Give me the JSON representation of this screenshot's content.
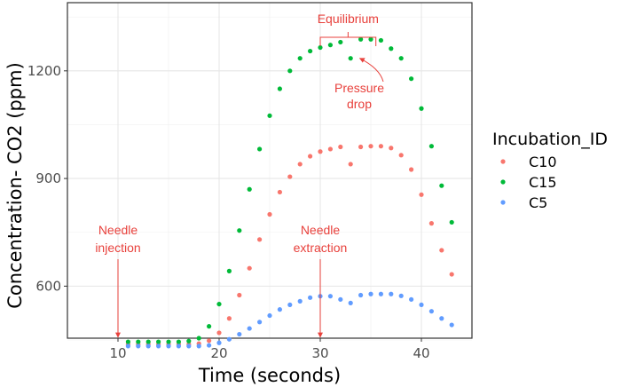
{
  "chart_data": {
    "type": "scatter",
    "title": "",
    "xlabel": "Time (seconds)",
    "ylabel": "Concentration- CO2 (ppm)",
    "xlim": [
      5,
      45
    ],
    "ylim": [
      455,
      1390
    ],
    "xticks": [
      10,
      20,
      30,
      40
    ],
    "yticks": [
      600,
      900,
      1200
    ],
    "xtick_labels": [
      "10",
      "20",
      "30",
      "40"
    ],
    "ytick_labels": [
      "600",
      "900",
      "1200"
    ],
    "grid": true,
    "legend": {
      "title": "Incubation_ID",
      "position": "right"
    },
    "series": [
      {
        "name": "C10",
        "color": "#F8766D",
        "points": [
          [
            11,
            438
          ],
          [
            12,
            438
          ],
          [
            13,
            438
          ],
          [
            14,
            438
          ],
          [
            15,
            438
          ],
          [
            16,
            438
          ],
          [
            17,
            438
          ],
          [
            18,
            440
          ],
          [
            19,
            448
          ],
          [
            20,
            470
          ],
          [
            21,
            510
          ],
          [
            22,
            575
          ],
          [
            23,
            650
          ],
          [
            24,
            730
          ],
          [
            25,
            800
          ],
          [
            26,
            862
          ],
          [
            27,
            905
          ],
          [
            28,
            940
          ],
          [
            29,
            962
          ],
          [
            30,
            975
          ],
          [
            31,
            982
          ],
          [
            32,
            988
          ],
          [
            33,
            940
          ],
          [
            34,
            988
          ],
          [
            35,
            990
          ],
          [
            36,
            990
          ],
          [
            37,
            985
          ],
          [
            38,
            965
          ],
          [
            39,
            925
          ],
          [
            40,
            855
          ],
          [
            41,
            775
          ],
          [
            42,
            700
          ],
          [
            43,
            633
          ]
        ]
      },
      {
        "name": "C15",
        "color": "#00BA38",
        "points": [
          [
            11,
            445
          ],
          [
            12,
            445
          ],
          [
            13,
            445
          ],
          [
            14,
            445
          ],
          [
            15,
            445
          ],
          [
            16,
            445
          ],
          [
            17,
            447
          ],
          [
            18,
            455
          ],
          [
            19,
            488
          ],
          [
            20,
            550
          ],
          [
            21,
            642
          ],
          [
            22,
            755
          ],
          [
            23,
            870
          ],
          [
            24,
            982
          ],
          [
            25,
            1075
          ],
          [
            26,
            1150
          ],
          [
            27,
            1200
          ],
          [
            28,
            1235
          ],
          [
            29,
            1255
          ],
          [
            30,
            1265
          ],
          [
            31,
            1272
          ],
          [
            32,
            1280
          ],
          [
            33,
            1235
          ],
          [
            34,
            1288
          ],
          [
            35,
            1288
          ],
          [
            36,
            1285
          ],
          [
            37,
            1262
          ],
          [
            38,
            1235
          ],
          [
            39,
            1178
          ],
          [
            40,
            1095
          ],
          [
            41,
            990
          ],
          [
            42,
            880
          ],
          [
            43,
            778
          ]
        ]
      },
      {
        "name": "C5",
        "color": "#619CFF",
        "points": [
          [
            11,
            433
          ],
          [
            12,
            433
          ],
          [
            13,
            433
          ],
          [
            14,
            433
          ],
          [
            15,
            433
          ],
          [
            16,
            433
          ],
          [
            17,
            433
          ],
          [
            18,
            433
          ],
          [
            19,
            435
          ],
          [
            20,
            442
          ],
          [
            21,
            452
          ],
          [
            22,
            466
          ],
          [
            23,
            482
          ],
          [
            24,
            500
          ],
          [
            25,
            518
          ],
          [
            26,
            535
          ],
          [
            27,
            548
          ],
          [
            28,
            558
          ],
          [
            29,
            568
          ],
          [
            30,
            572
          ],
          [
            31,
            572
          ],
          [
            32,
            563
          ],
          [
            33,
            553
          ],
          [
            34,
            575
          ],
          [
            35,
            578
          ],
          [
            36,
            578
          ],
          [
            37,
            578
          ],
          [
            38,
            573
          ],
          [
            39,
            563
          ],
          [
            40,
            548
          ],
          [
            41,
            530
          ],
          [
            42,
            510
          ],
          [
            43,
            492
          ]
        ]
      }
    ],
    "annotations": {
      "equilibrium": "Equilibrium",
      "pressure_drop_line1": "Pressure",
      "pressure_drop_line2": "drop",
      "needle_injection_line1": "Needle",
      "needle_injection_line2": "injection",
      "needle_extraction_line1": "Needle",
      "needle_extraction_line2": "extraction",
      "annotation_color": "#e8413c"
    }
  }
}
